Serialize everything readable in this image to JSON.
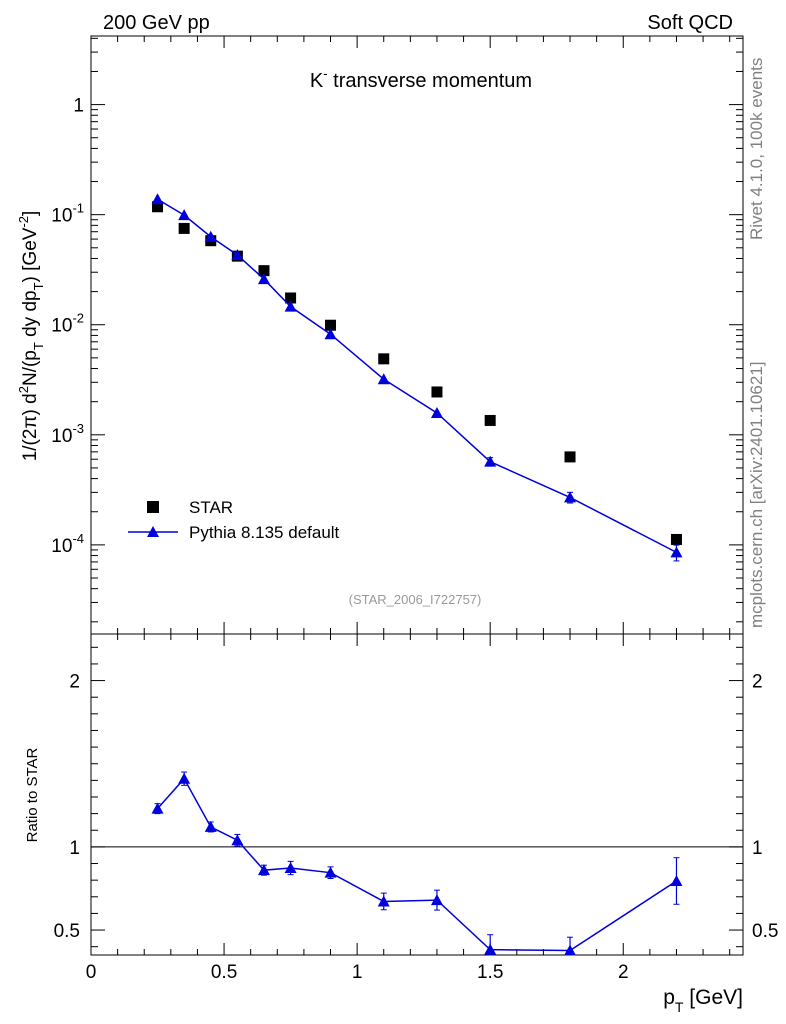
{
  "header": {
    "left": "200 GeV pp",
    "right": "Soft QCD"
  },
  "side_labels": {
    "rivet": "Rivet 4.1.0,  100k events",
    "mcplots": "mcplots.cern.ch [arXiv:2401.10621]"
  },
  "colors": {
    "data": "#000000",
    "mc": "#0000dd",
    "watermark": "#999999",
    "side": "#808080"
  },
  "chart_data": [
    {
      "type": "scatter",
      "panel": "main",
      "title": "K⁻ transverse momentum",
      "title_parts": {
        "base": "K",
        "sup": "-",
        "rest": " transverse momentum"
      },
      "xlabel": "pT [GeV]",
      "ylabel": "1/(2π)  d²N/(pT dy dpT) [GeV⁻²]",
      "yscale": "log",
      "xlim": [
        0,
        2.45
      ],
      "ylim": [
        1.55e-05,
        4.2
      ],
      "watermark": "(STAR_2006_I722757)",
      "x_ticks": [
        0,
        0.5,
        1,
        1.5,
        2
      ],
      "y_ticks": [
        {
          "base": "10",
          "exp": "-4",
          "value": 0.0001
        },
        {
          "base": "10",
          "exp": "-3",
          "value": 0.001
        },
        {
          "base": "10",
          "exp": "-2",
          "value": 0.01
        },
        {
          "base": "10",
          "exp": "-1",
          "value": 0.1
        },
        {
          "base": "1",
          "exp": "",
          "value": 1
        }
      ],
      "legend": {
        "position": "bottom-left",
        "entries": [
          "STAR",
          "Pythia 8.135 default"
        ]
      },
      "series": [
        {
          "name": "STAR",
          "style": "square-markers",
          "x": [
            0.25,
            0.35,
            0.45,
            0.55,
            0.65,
            0.75,
            0.9,
            1.1,
            1.3,
            1.5,
            1.8,
            2.2
          ],
          "y": [
            0.118,
            0.075,
            0.058,
            0.042,
            0.031,
            0.0175,
            0.0099,
            0.0049,
            0.00245,
            0.00135,
            0.00063,
            0.000112
          ]
        },
        {
          "name": "Pythia 8.135 default",
          "style": "line-triangles",
          "x": [
            0.25,
            0.35,
            0.45,
            0.55,
            0.65,
            0.75,
            0.9,
            1.1,
            1.3,
            1.5,
            1.8,
            2.2
          ],
          "y": [
            0.138,
            0.099,
            0.063,
            0.043,
            0.026,
            0.0146,
            0.0082,
            0.0032,
            0.00158,
            0.00057,
            0.00027,
            8.55e-05
          ],
          "err": [
            0.004,
            0.003,
            0.002,
            0.0013,
            0.0008,
            0.0005,
            0.0003,
            0.00012,
            7e-05,
            5e-05,
            3e-05,
            1.4e-05
          ]
        }
      ]
    },
    {
      "type": "line",
      "panel": "ratio",
      "ylabel": "Ratio to STAR",
      "xlabel": "pT [GeV]",
      "xlim": [
        0,
        2.45
      ],
      "ylim": [
        0.35,
        2.28
      ],
      "reference_line": 1,
      "y_ticks": [
        0.5,
        1,
        2
      ],
      "series": [
        {
          "name": "Pythia 8.135 default",
          "x": [
            0.25,
            0.35,
            0.45,
            0.55,
            0.65,
            0.75,
            0.9,
            1.1,
            1.3,
            1.5,
            1.8,
            2.2
          ],
          "y": [
            1.23,
            1.41,
            1.12,
            1.04,
            0.86,
            0.873,
            0.845,
            0.672,
            0.68,
            0.382,
            0.377,
            0.795
          ],
          "err": [
            0.03,
            0.04,
            0.03,
            0.035,
            0.03,
            0.04,
            0.035,
            0.05,
            0.06,
            0.09,
            0.08,
            0.14
          ]
        }
      ]
    }
  ]
}
